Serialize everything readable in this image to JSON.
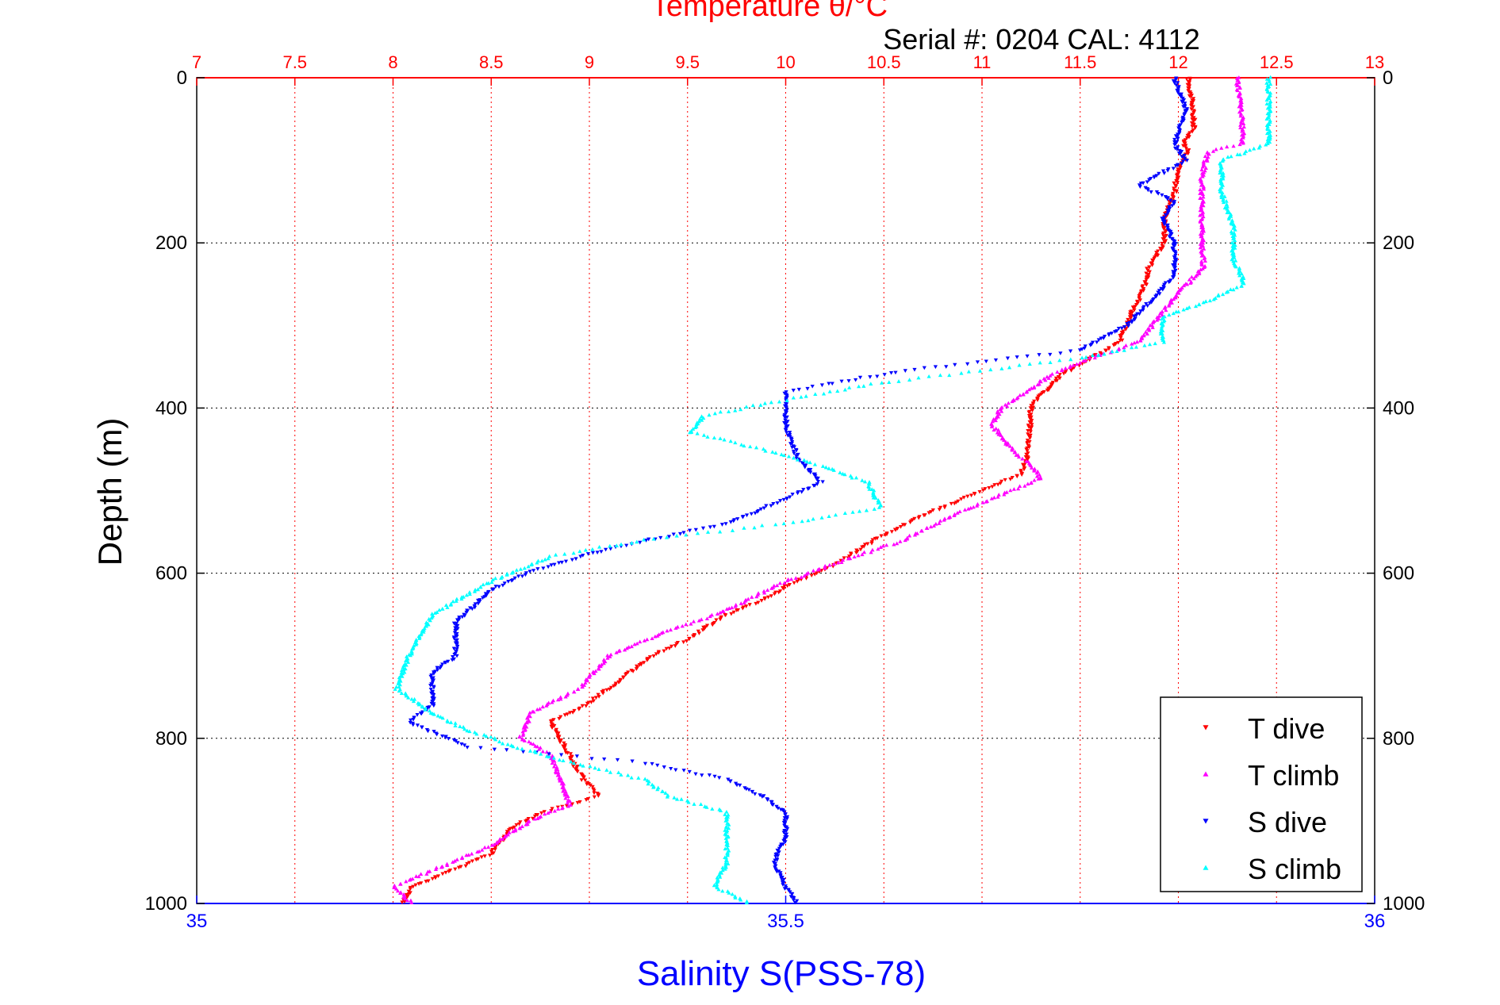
{
  "chart_data": {
    "type": "scatter",
    "title": "Temperature θ/°C",
    "subtitle": "Serial #: 0204  CAL: 4112",
    "ylabel": "Depth (m)",
    "xlabel": "Salinity S(PSS-78)",
    "top_axis": {
      "label": "Temperature θ/°C",
      "range": [
        7,
        13
      ],
      "ticks": [
        "7",
        "7.5",
        "8",
        "8.5",
        "9",
        "9.5",
        "10",
        "10.5",
        "11",
        "11.5",
        "12",
        "12.5",
        "13"
      ],
      "color": "#ff0000"
    },
    "bottom_axis": {
      "label": "Salinity S(PSS-78)",
      "range": [
        35,
        36
      ],
      "ticks": [
        "35",
        "35.5",
        "36"
      ],
      "color": "#0000ff"
    },
    "y_axis": {
      "range": [
        0,
        1000
      ],
      "inverted": true,
      "ticks": [
        "0",
        "200",
        "400",
        "600",
        "800",
        "1000"
      ]
    },
    "grid": true,
    "legend_position": "bottom-right",
    "series": [
      {
        "name": "T dive",
        "axis": "temperature",
        "color": "#ff0000",
        "marker": "triangle-down",
        "points": [
          [
            12.05,
            0
          ],
          [
            12.07,
            30
          ],
          [
            12.08,
            60
          ],
          [
            12.03,
            80
          ],
          [
            12.05,
            90
          ],
          [
            12.0,
            110
          ],
          [
            11.98,
            140
          ],
          [
            11.93,
            170
          ],
          [
            11.93,
            200
          ],
          [
            11.85,
            230
          ],
          [
            11.82,
            260
          ],
          [
            11.75,
            290
          ],
          [
            11.7,
            320
          ],
          [
            11.55,
            340
          ],
          [
            11.4,
            360
          ],
          [
            11.3,
            385
          ],
          [
            11.25,
            400
          ],
          [
            11.24,
            440
          ],
          [
            11.23,
            460
          ],
          [
            11.2,
            480
          ],
          [
            11.0,
            500
          ],
          [
            10.7,
            530
          ],
          [
            10.45,
            560
          ],
          [
            10.25,
            590
          ],
          [
            10.05,
            610
          ],
          [
            9.9,
            630
          ],
          [
            9.7,
            650
          ],
          [
            9.5,
            680
          ],
          [
            9.32,
            700
          ],
          [
            9.1,
            740
          ],
          [
            8.98,
            760
          ],
          [
            8.8,
            780
          ],
          [
            8.85,
            800
          ],
          [
            8.92,
            830
          ],
          [
            8.97,
            850
          ],
          [
            9.05,
            870
          ],
          [
            8.75,
            890
          ],
          [
            8.6,
            910
          ],
          [
            8.5,
            940
          ],
          [
            8.3,
            960
          ],
          [
            8.1,
            980
          ],
          [
            8.05,
            1000
          ]
        ]
      },
      {
        "name": "T climb",
        "axis": "temperature",
        "color": "#ff00ff",
        "marker": "triangle-up",
        "points": [
          [
            12.3,
            0
          ],
          [
            12.32,
            40
          ],
          [
            12.33,
            80
          ],
          [
            12.15,
            90
          ],
          [
            12.12,
            120
          ],
          [
            12.12,
            160
          ],
          [
            12.12,
            200
          ],
          [
            12.13,
            230
          ],
          [
            12.0,
            260
          ],
          [
            11.9,
            290
          ],
          [
            11.8,
            320
          ],
          [
            11.55,
            340
          ],
          [
            11.35,
            360
          ],
          [
            11.1,
            400
          ],
          [
            11.05,
            420
          ],
          [
            11.15,
            450
          ],
          [
            11.25,
            470
          ],
          [
            11.3,
            485
          ],
          [
            11.15,
            500
          ],
          [
            10.85,
            530
          ],
          [
            10.6,
            560
          ],
          [
            10.35,
            580
          ],
          [
            10.0,
            610
          ],
          [
            9.65,
            650
          ],
          [
            9.4,
            670
          ],
          [
            9.1,
            700
          ],
          [
            8.95,
            740
          ],
          [
            8.7,
            770
          ],
          [
            8.65,
            800
          ],
          [
            8.8,
            820
          ],
          [
            8.85,
            850
          ],
          [
            8.9,
            880
          ],
          [
            8.7,
            900
          ],
          [
            8.5,
            930
          ],
          [
            8.3,
            950
          ],
          [
            8.0,
            980
          ],
          [
            8.1,
            1000
          ]
        ]
      },
      {
        "name": "S dive",
        "axis": "salinity",
        "color": "#0000ff",
        "marker": "triangle-down",
        "points": [
          [
            35.83,
            0
          ],
          [
            35.84,
            40
          ],
          [
            35.83,
            80
          ],
          [
            35.84,
            100
          ],
          [
            35.8,
            130
          ],
          [
            35.83,
            150
          ],
          [
            35.82,
            170
          ],
          [
            35.83,
            200
          ],
          [
            35.83,
            240
          ],
          [
            35.81,
            270
          ],
          [
            35.79,
            300
          ],
          [
            35.75,
            330
          ],
          [
            35.6,
            355
          ],
          [
            35.5,
            380
          ],
          [
            35.5,
            400
          ],
          [
            35.5,
            420
          ],
          [
            35.51,
            460
          ],
          [
            35.53,
            490
          ],
          [
            35.5,
            510
          ],
          [
            35.45,
            540
          ],
          [
            35.35,
            570
          ],
          [
            35.28,
            600
          ],
          [
            35.25,
            620
          ],
          [
            35.22,
            660
          ],
          [
            35.22,
            700
          ],
          [
            35.2,
            720
          ],
          [
            35.2,
            760
          ],
          [
            35.18,
            780
          ],
          [
            35.23,
            810
          ],
          [
            35.38,
            830
          ],
          [
            35.45,
            850
          ],
          [
            35.48,
            870
          ],
          [
            35.5,
            890
          ],
          [
            35.5,
            920
          ],
          [
            35.49,
            950
          ],
          [
            35.5,
            980
          ],
          [
            35.51,
            1000
          ]
        ]
      },
      {
        "name": "S climb",
        "axis": "salinity",
        "color": "#00ffff",
        "marker": "triangle-up",
        "points": [
          [
            35.91,
            0
          ],
          [
            35.91,
            40
          ],
          [
            35.91,
            80
          ],
          [
            35.87,
            100
          ],
          [
            35.87,
            140
          ],
          [
            35.88,
            180
          ],
          [
            35.88,
            220
          ],
          [
            35.89,
            250
          ],
          [
            35.85,
            275
          ],
          [
            35.82,
            290
          ],
          [
            35.82,
            320
          ],
          [
            35.75,
            340
          ],
          [
            35.58,
            370
          ],
          [
            35.5,
            390
          ],
          [
            35.43,
            410
          ],
          [
            35.42,
            430
          ],
          [
            35.48,
            450
          ],
          [
            35.53,
            470
          ],
          [
            35.57,
            490
          ],
          [
            35.58,
            520
          ],
          [
            35.5,
            540
          ],
          [
            35.38,
            560
          ],
          [
            35.3,
            580
          ],
          [
            35.25,
            610
          ],
          [
            35.2,
            650
          ],
          [
            35.18,
            700
          ],
          [
            35.17,
            740
          ],
          [
            35.2,
            770
          ],
          [
            35.23,
            790
          ],
          [
            35.27,
            810
          ],
          [
            35.32,
            830
          ],
          [
            35.38,
            850
          ],
          [
            35.4,
            870
          ],
          [
            35.45,
            890
          ],
          [
            35.45,
            920
          ],
          [
            35.45,
            950
          ],
          [
            35.44,
            980
          ],
          [
            35.47,
            1000
          ]
        ]
      }
    ]
  }
}
